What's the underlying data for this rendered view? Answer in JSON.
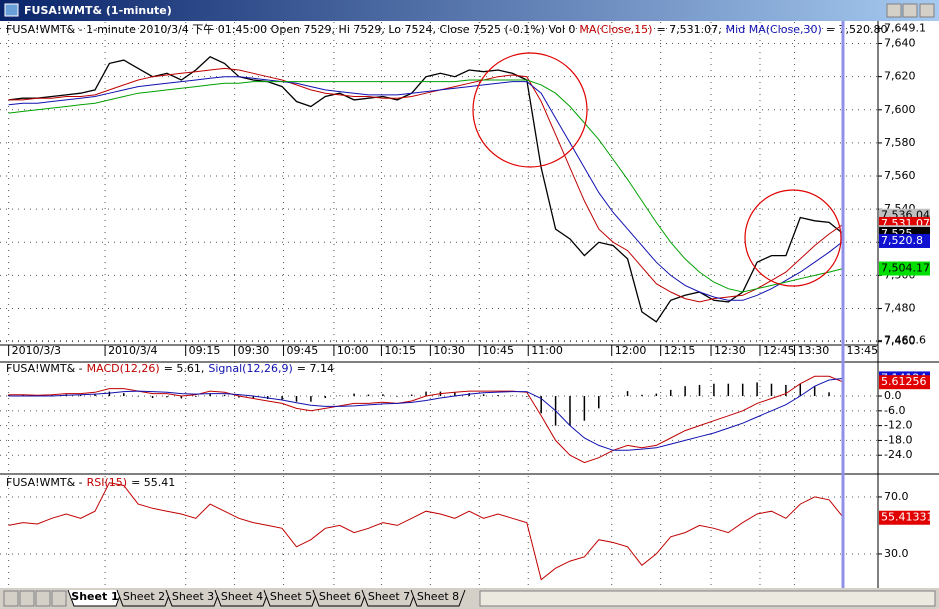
{
  "window": {
    "title": "FUSA!WMT& (1-minute)"
  },
  "tabs": [
    "Sheet 1",
    "Sheet 2",
    "Sheet 3",
    "Sheet 4",
    "Sheet 5",
    "Sheet 6",
    "Sheet 7",
    "Sheet 8"
  ],
  "chart_data": [
    {
      "type": "line",
      "title": "FUSA!WMT& - 1-minute 2010/3/4 下午 01:45:00 Open 7529, Hi 7529, Lo 7524, Close 7525 (-0.1%) Vol 0",
      "xlim": [
        -0.6,
        60.4
      ],
      "xticks": [
        {
          "value": 0,
          "label": "2010/3/3"
        },
        {
          "value": 6.7,
          "label": "2010/3/4"
        },
        {
          "value": 12.3,
          "label": "09:15"
        },
        {
          "value": 15.7,
          "label": "09:30"
        },
        {
          "value": 19.1,
          "label": "09:45"
        },
        {
          "value": 22.6,
          "label": "10:00"
        },
        {
          "value": 25.9,
          "label": "10:15"
        },
        {
          "value": 29.3,
          "label": "10:30"
        },
        {
          "value": 32.7,
          "label": "10:45"
        },
        {
          "value": 36.1,
          "label": "11:00"
        },
        {
          "value": 41.9,
          "label": "12:00"
        },
        {
          "value": 45.3,
          "label": "12:15"
        },
        {
          "value": 48.8,
          "label": "12:30"
        },
        {
          "value": 52.2,
          "label": "12:45"
        },
        {
          "value": 54.6,
          "label": "13:30"
        },
        {
          "value": 58,
          "label": "13:45"
        }
      ],
      "ylim": [
        7458,
        7653
      ],
      "yticks": [
        {
          "value": 7460,
          "label": "7,460"
        },
        {
          "value": 7460.6,
          "label": "7,460.6"
        },
        {
          "value": 7480,
          "label": "7,480"
        },
        {
          "value": 7500,
          "label": "7,500"
        },
        {
          "value": 7520,
          "label": "7,520"
        },
        {
          "value": 7540,
          "label": "7,540"
        },
        {
          "value": 7560,
          "label": "7,560"
        },
        {
          "value": 7580,
          "label": "7,580"
        },
        {
          "value": 7600,
          "label": "7,600"
        },
        {
          "value": 7620,
          "label": "7,620"
        },
        {
          "value": 7640,
          "label": "7,640"
        },
        {
          "value": 7649.1,
          "label": "7,649.1"
        }
      ],
      "grid": true,
      "series": [
        {
          "color": "#000000",
          "values": [
            7606,
            7607,
            7607,
            7608,
            7609,
            7610,
            7612,
            7628,
            7630,
            7625,
            7620,
            7622,
            7618,
            7624,
            7632,
            7628,
            7620,
            7618,
            7617,
            7614,
            7605,
            7602,
            7608,
            7610,
            7606,
            7607,
            7608,
            7606,
            7610,
            7620,
            7622,
            7620,
            7624,
            7623,
            7624,
            7622,
            7618,
            7565,
            7528,
            7522,
            7512,
            7520,
            7518,
            7510,
            7478,
            7472,
            7485,
            7488,
            7490,
            7485,
            7484,
            7490,
            7508,
            7512,
            7512,
            7535,
            7533,
            7532,
            7525
          ]
        },
        {
          "name": "MA(Close,15)",
          "legend_value": "= 7,531.07,",
          "color": "#c00000",
          "values": [
            7606,
            7606,
            7607,
            7607,
            7608,
            7608,
            7609,
            7612,
            7615,
            7618,
            7620,
            7621,
            7622,
            7623,
            7624,
            7625,
            7624,
            7622,
            7620,
            7618,
            7615,
            7612,
            7610,
            7609,
            7608,
            7608,
            7607,
            7607,
            7608,
            7610,
            7612,
            7614,
            7616,
            7618,
            7620,
            7621,
            7620,
            7605,
            7585,
            7565,
            7545,
            7528,
            7520,
            7515,
            7505,
            7495,
            7490,
            7486,
            7484,
            7486,
            7487,
            7488,
            7492,
            7497,
            7502,
            7510,
            7518,
            7525,
            7531.07
          ]
        },
        {
          "name": "Mid MA(Close,30)",
          "legend_value": "= 7,520.80",
          "color": "#1010b0",
          "values": [
            7603,
            7604,
            7604,
            7605,
            7606,
            7607,
            7608,
            7610,
            7612,
            7614,
            7615,
            7616,
            7617,
            7618,
            7619,
            7620,
            7620,
            7619,
            7618,
            7617,
            7616,
            7614,
            7612,
            7611,
            7610,
            7609,
            7609,
            7609,
            7610,
            7611,
            7612,
            7613,
            7614,
            7615,
            7616,
            7617,
            7617,
            7610,
            7595,
            7580,
            7565,
            7550,
            7538,
            7528,
            7518,
            7508,
            7500,
            7494,
            7490,
            7487,
            7485,
            7485,
            7488,
            7492,
            7497,
            7502,
            7508,
            7514,
            7520.8
          ]
        },
        {
          "color": "#00a000",
          "values": [
            7598,
            7599,
            7600,
            7601,
            7602,
            7603,
            7604,
            7606,
            7608,
            7610,
            7611,
            7612,
            7613,
            7614,
            7615,
            7616,
            7616,
            7617,
            7617,
            7617,
            7617,
            7617,
            7617,
            7617,
            7617,
            7617,
            7617,
            7617,
            7617,
            7617,
            7617,
            7617,
            7618,
            7618,
            7618,
            7618,
            7618,
            7615,
            7610,
            7602,
            7592,
            7582,
            7570,
            7558,
            7545,
            7532,
            7520,
            7510,
            7502,
            7496,
            7492,
            7490,
            7492,
            7494,
            7496,
            7498,
            7500,
            7502,
            7504.17
          ]
        }
      ],
      "price_labels": [
        {
          "value": 7536.04,
          "label": "7,536.04",
          "color": "#c0c0c0"
        },
        {
          "value": 7531.07,
          "label": "7,531.07",
          "color": "#e00000"
        },
        {
          "value": 7526.09,
          "label": "7,526.09",
          "color": "#c0c0c0"
        },
        {
          "value": 7525,
          "label": "7,525",
          "color": "#000000"
        },
        {
          "value": 7520.8,
          "label": "7,520.8",
          "color": "#1010d0"
        },
        {
          "value": 7504.17,
          "label": "7,504.17",
          "color": "#00e000"
        }
      ]
    },
    {
      "type": "line",
      "title": "FUSA!WMT& -",
      "ylim": [
        -30.8,
        13.8
      ],
      "yticks": [
        {
          "value": 0,
          "label": "0.0"
        },
        {
          "value": -6,
          "label": "-6.0"
        },
        {
          "value": -12,
          "label": "-12.0"
        },
        {
          "value": -18,
          "label": "-18.0"
        },
        {
          "value": -24,
          "label": "-24.0"
        }
      ],
      "grid": true,
      "series": [
        {
          "name": "MACD(12,26)",
          "legend_value": "= 5.61,",
          "color": "#c00000",
          "values": [
            0.5,
            0.5,
            0.3,
            0.5,
            1,
            1,
            1.5,
            3,
            3,
            2,
            1,
            1,
            0,
            0.5,
            2,
            1.5,
            0,
            -1,
            -2,
            -3,
            -5,
            -6,
            -5,
            -4,
            -3,
            -3,
            -2.5,
            -3,
            -2,
            0,
            1,
            1.5,
            2,
            2,
            2,
            2,
            1.5,
            -8,
            -18,
            -24,
            -27,
            -25,
            -22,
            -20,
            -21,
            -20,
            -17,
            -14,
            -12,
            -10,
            -8,
            -6,
            -3,
            -1,
            1,
            5,
            8,
            8,
            5.61
          ]
        },
        {
          "name": "Signal(12,26,9)",
          "legend_value": "= 7.14",
          "color": "#1010b0",
          "values": [
            0,
            0,
            0,
            0,
            0.3,
            0.5,
            0.8,
            1.2,
            1.8,
            2,
            1.8,
            1.5,
            1,
            0.8,
            1,
            1,
            0.6,
            0,
            -0.8,
            -1.6,
            -2.7,
            -3.7,
            -4.2,
            -4.2,
            -4,
            -3.6,
            -3.2,
            -3,
            -2.6,
            -1.8,
            -0.8,
            0,
            0.8,
            1.3,
            1.6,
            1.8,
            1.8,
            -1,
            -6,
            -12,
            -17,
            -20,
            -22,
            -22,
            -21.5,
            -21,
            -19.5,
            -18,
            -16.5,
            -15,
            -13,
            -11,
            -8.5,
            -6,
            -3.5,
            0,
            4,
            6.5,
            7.14
          ]
        }
      ],
      "histogram": {
        "color": "#000000",
        "values": [
          0.5,
          0.5,
          0.3,
          0.5,
          0.7,
          0.5,
          0.7,
          1.8,
          1.2,
          0,
          -0.8,
          -0.5,
          -1,
          -0.3,
          1,
          0.5,
          -0.6,
          -1,
          -1.2,
          -1.4,
          -2.3,
          -2.3,
          -0.8,
          0.2,
          1,
          0.6,
          0.7,
          0,
          0.6,
          1.8,
          1.8,
          1.5,
          1.2,
          0.7,
          0.4,
          0.2,
          -0.3,
          -7,
          -12,
          -12,
          -10,
          -5,
          0,
          2,
          0.5,
          1,
          2.5,
          4,
          4.5,
          5,
          5,
          5,
          5.5,
          5,
          4.5,
          5,
          4,
          1.5,
          -1.5
        ]
      },
      "price_labels": [
        {
          "value": 7.14124,
          "label": "7.14124",
          "color": "#1010d0"
        },
        {
          "value": 5.61256,
          "label": "5.61256",
          "color": "#e00000"
        }
      ]
    },
    {
      "type": "line",
      "title": "FUSA!WMT& -",
      "ylim": [
        6.1,
        84.7
      ],
      "yticks": [
        {
          "value": 70,
          "label": "70.0"
        },
        {
          "value": 30,
          "label": "30.0"
        }
      ],
      "grid": true,
      "series": [
        {
          "name": "RSI(15)",
          "legend_value": "= 55.41",
          "color": "#c00000",
          "values": [
            50,
            52,
            51,
            55,
            58,
            55,
            60,
            80,
            78,
            65,
            62,
            60,
            58,
            55,
            65,
            60,
            55,
            52,
            50,
            48,
            35,
            40,
            48,
            50,
            45,
            48,
            52,
            50,
            55,
            60,
            58,
            55,
            60,
            55,
            58,
            55,
            52,
            12,
            20,
            25,
            28,
            40,
            38,
            35,
            22,
            30,
            42,
            45,
            50,
            48,
            45,
            52,
            58,
            60,
            55,
            65,
            70,
            68,
            55.41
          ]
        }
      ],
      "price_labels": [
        {
          "value": 55.41,
          "label": "55.41331",
          "color": "#e00000"
        }
      ]
    }
  ]
}
